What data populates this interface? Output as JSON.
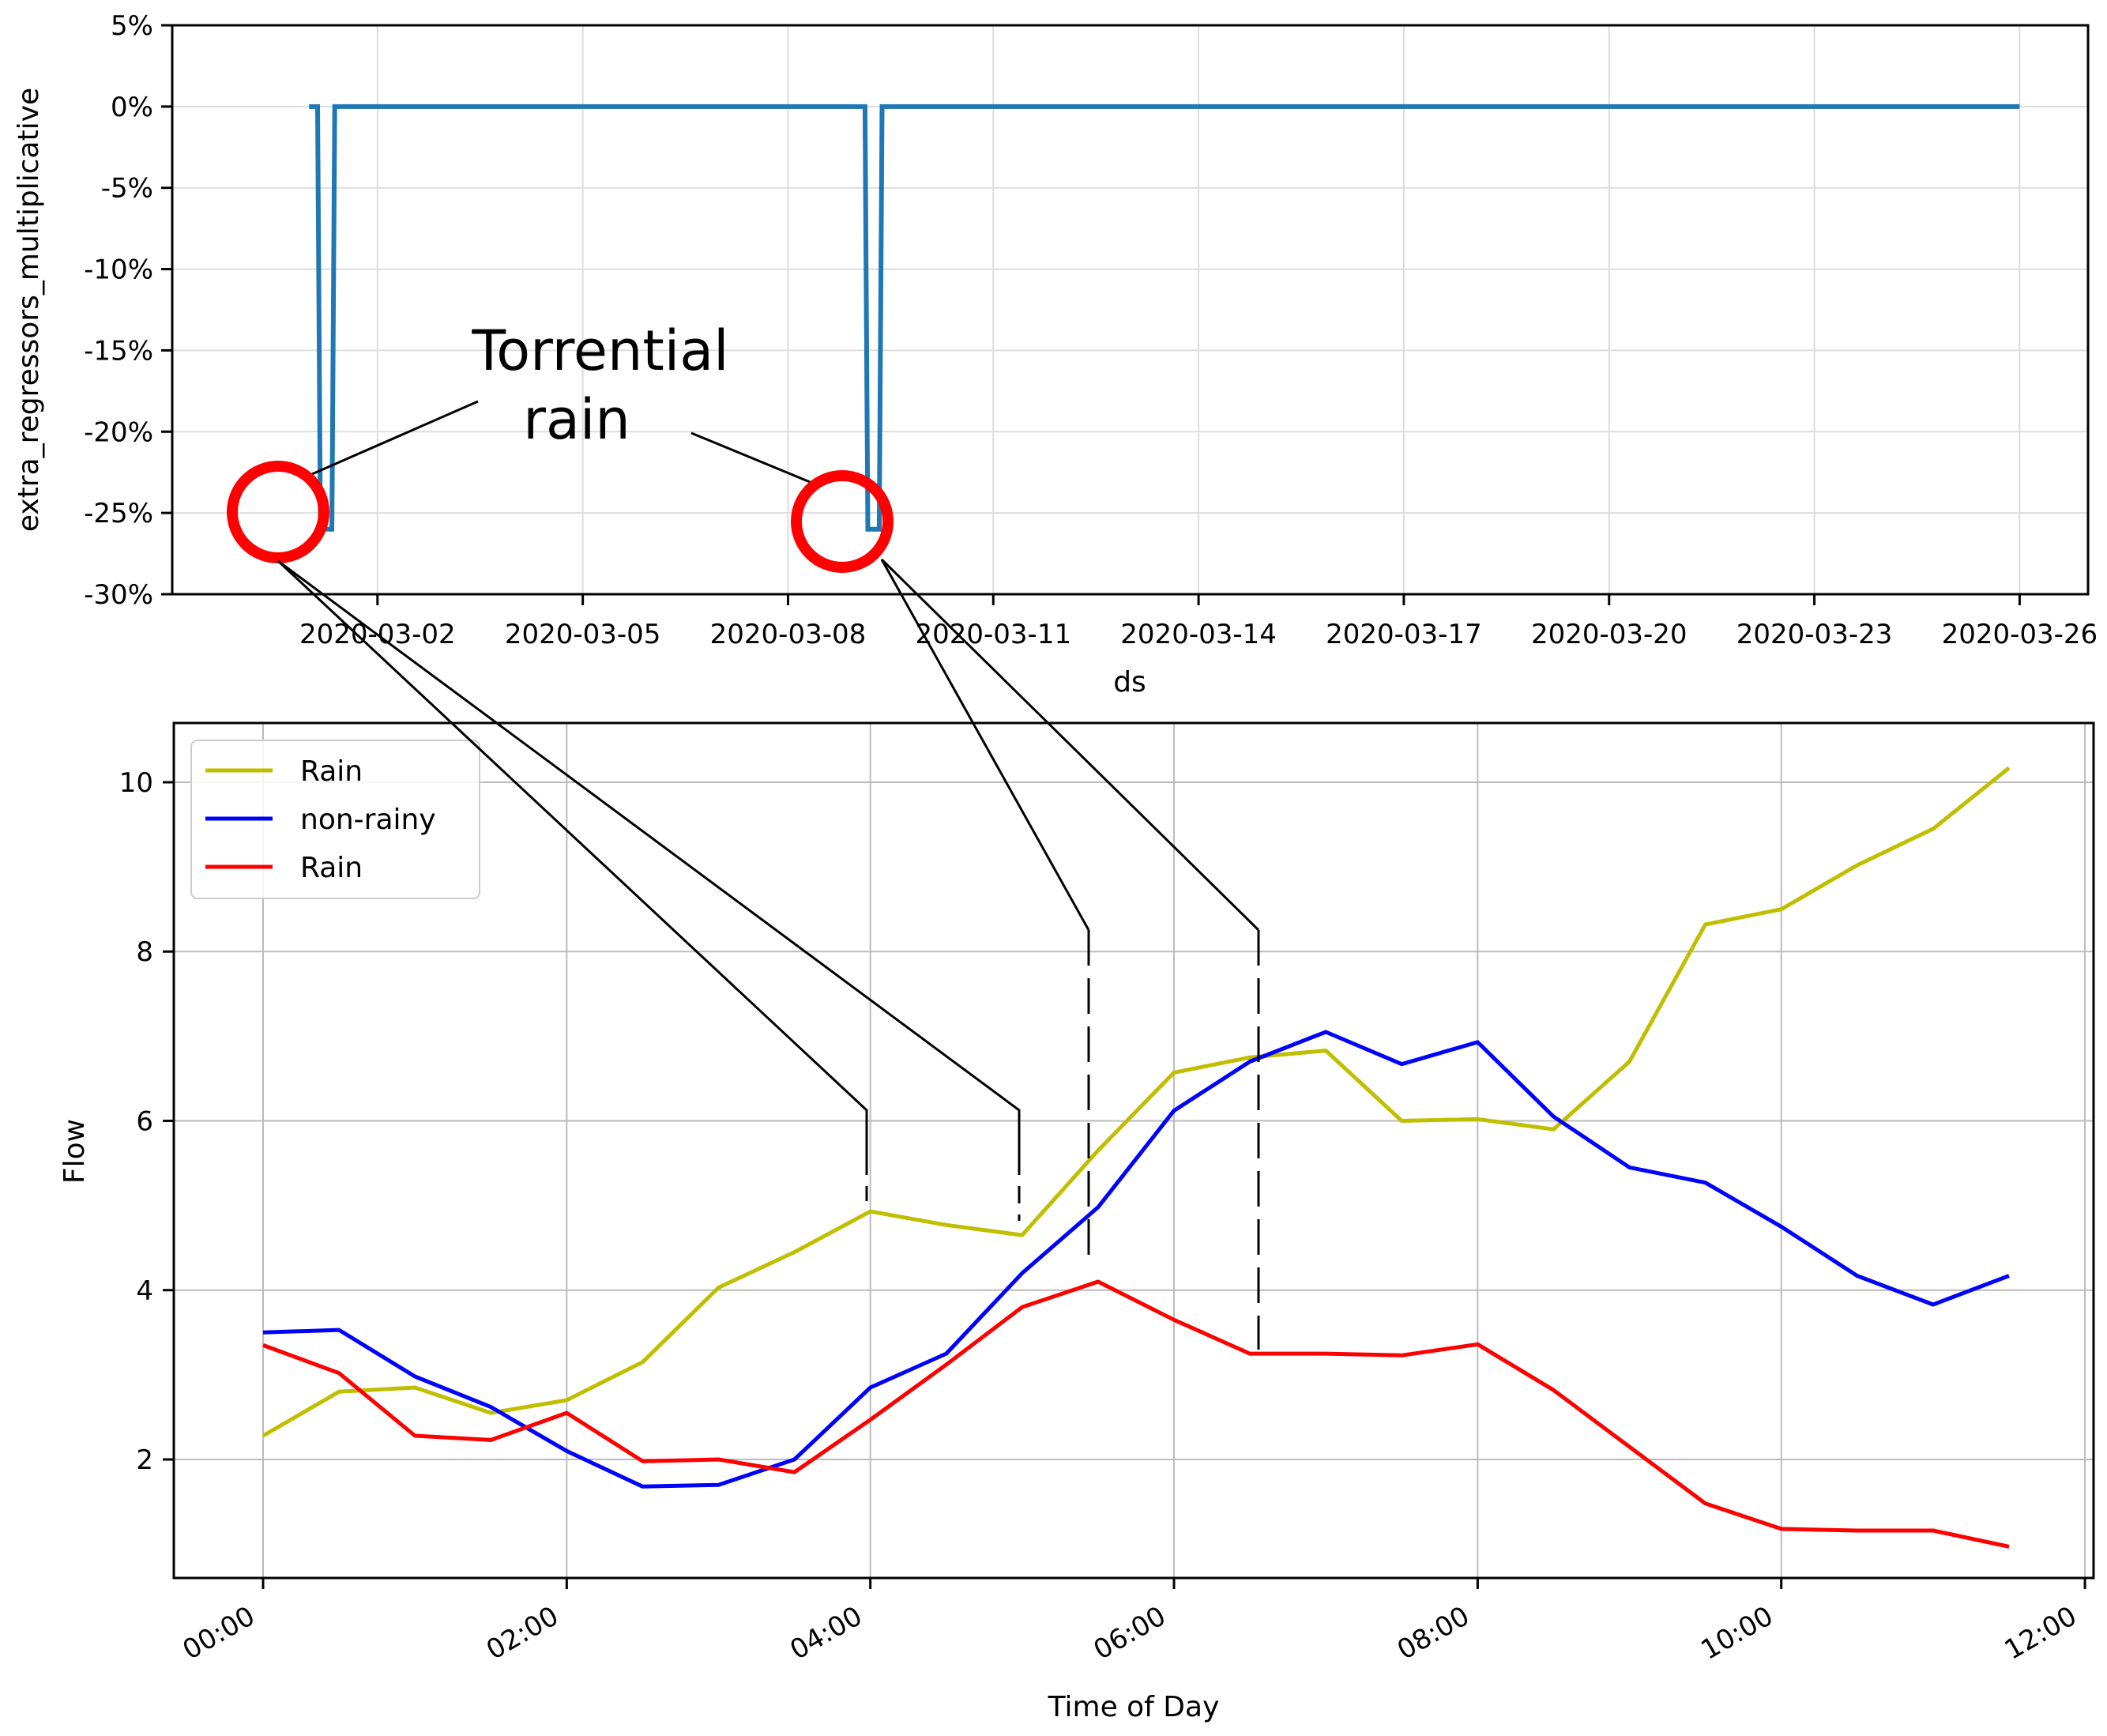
{
  "chart_data": [
    {
      "type": "line",
      "xlabel": "ds",
      "ylabel": "extra_regressors_multiplicative",
      "x_ticks": [
        "2020-03-02",
        "2020-03-05",
        "2020-03-08",
        "2020-03-11",
        "2020-03-14",
        "2020-03-17",
        "2020-03-20",
        "2020-03-23",
        "2020-03-26"
      ],
      "y_ticks": [
        "5%",
        "0%",
        "-5%",
        "-10%",
        "-15%",
        "-20%",
        "-25%",
        "-30%"
      ],
      "ylim": [
        -30,
        5
      ],
      "xlim": [
        "2020-02-28",
        "2020-03-27"
      ],
      "grid": true,
      "color": "#1f77b4",
      "series": [
        {
          "x": [
            "2020-03-01 00:00",
            "2020-03-01 03:00",
            "2020-03-01 04:00",
            "2020-03-01 08:00",
            "2020-03-01 09:00",
            "2020-03-09 00:00",
            "2020-03-09 03:00",
            "2020-03-09 04:00",
            "2020-03-09 08:00",
            "2020-03-09 09:00",
            "2020-03-26 00:00"
          ],
          "values": [
            0,
            0,
            -26,
            -26,
            0,
            0,
            0,
            -26,
            -26,
            0,
            0
          ]
        }
      ],
      "annotations": [
        {
          "text_lines": [
            "Torrential",
            "rain"
          ]
        }
      ]
    },
    {
      "type": "line",
      "xlabel": "Time of Day",
      "ylabel": "Flow",
      "x_ticks": [
        "00:00",
        "02:00",
        "04:00",
        "06:00",
        "08:00",
        "10:00",
        "12:00"
      ],
      "y_ticks": [
        "2",
        "4",
        "6",
        "8",
        "10"
      ],
      "ylim": [
        0.6,
        10.7
      ],
      "grid": true,
      "legend": "top-left",
      "categories": [
        "00:00",
        "00:30",
        "01:00",
        "01:30",
        "02:00",
        "02:30",
        "03:00",
        "03:30",
        "04:00",
        "04:30",
        "05:00",
        "05:30",
        "06:00",
        "06:30",
        "07:00",
        "07:30",
        "08:00",
        "08:30",
        "09:00",
        "09:30",
        "10:00",
        "10:30",
        "11:00",
        "11:30"
      ],
      "series": [
        {
          "name": "Rain",
          "color": "#bfbf00",
          "values": [
            2.28,
            2.8,
            2.85,
            2.55,
            2.7,
            3.15,
            4.03,
            4.45,
            4.93,
            4.77,
            4.65,
            5.65,
            6.57,
            6.75,
            6.83,
            6.0,
            6.02,
            5.9,
            6.7,
            8.32,
            8.5,
            9.02,
            9.45,
            10.17
          ]
        },
        {
          "name": "non-rainy",
          "color": "#0000ff",
          "values": [
            3.5,
            3.53,
            2.98,
            2.62,
            2.1,
            1.68,
            1.7,
            2.0,
            2.85,
            3.25,
            4.2,
            4.98,
            6.12,
            6.7,
            7.05,
            6.67,
            6.93,
            6.05,
            5.45,
            5.27,
            4.75,
            4.17,
            3.83,
            4.17
          ]
        },
        {
          "name": "Rain",
          "color": "#ff0000",
          "values": [
            3.35,
            3.02,
            2.28,
            2.23,
            2.55,
            1.98,
            2.0,
            1.85,
            2.47,
            3.12,
            3.8,
            4.1,
            3.65,
            3.25,
            3.25,
            3.23,
            3.36,
            2.82,
            2.15,
            1.48,
            1.18,
            1.16,
            1.16,
            0.97
          ]
        }
      ]
    }
  ]
}
